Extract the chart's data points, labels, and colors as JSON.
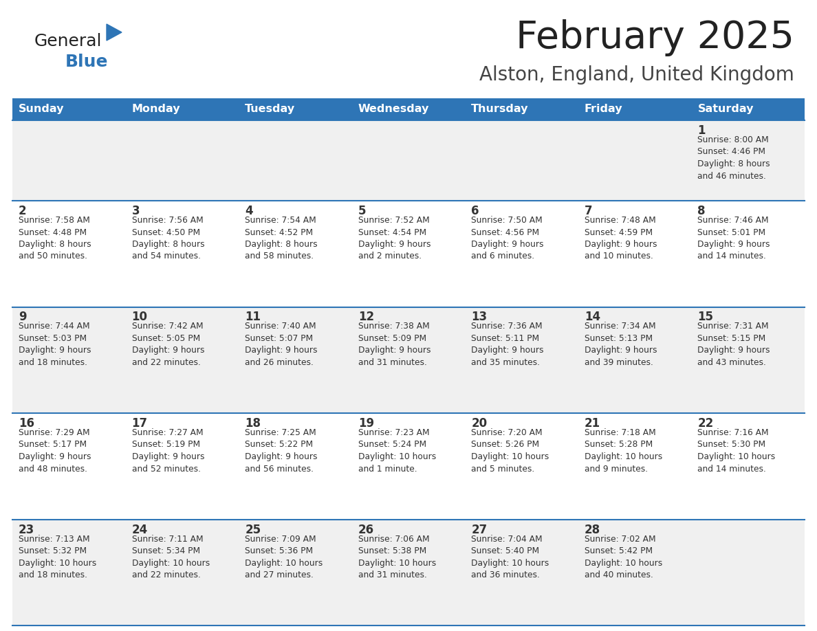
{
  "title": "February 2025",
  "subtitle": "Alston, England, United Kingdom",
  "header_bg": "#2E75B6",
  "header_text": "#FFFFFF",
  "row_bg_odd": "#F0F0F0",
  "row_bg_even": "#FFFFFF",
  "cell_border": "#2E75B6",
  "day_names": [
    "Sunday",
    "Monday",
    "Tuesday",
    "Wednesday",
    "Thursday",
    "Friday",
    "Saturday"
  ],
  "days": [
    {
      "day": 1,
      "col": 6,
      "row": 0,
      "sunrise": "8:00 AM",
      "sunset": "4:46 PM",
      "daylight": "8 hours and 46 minutes."
    },
    {
      "day": 2,
      "col": 0,
      "row": 1,
      "sunrise": "7:58 AM",
      "sunset": "4:48 PM",
      "daylight": "8 hours and 50 minutes."
    },
    {
      "day": 3,
      "col": 1,
      "row": 1,
      "sunrise": "7:56 AM",
      "sunset": "4:50 PM",
      "daylight": "8 hours and 54 minutes."
    },
    {
      "day": 4,
      "col": 2,
      "row": 1,
      "sunrise": "7:54 AM",
      "sunset": "4:52 PM",
      "daylight": "8 hours and 58 minutes."
    },
    {
      "day": 5,
      "col": 3,
      "row": 1,
      "sunrise": "7:52 AM",
      "sunset": "4:54 PM",
      "daylight": "9 hours and 2 minutes."
    },
    {
      "day": 6,
      "col": 4,
      "row": 1,
      "sunrise": "7:50 AM",
      "sunset": "4:56 PM",
      "daylight": "9 hours and 6 minutes."
    },
    {
      "day": 7,
      "col": 5,
      "row": 1,
      "sunrise": "7:48 AM",
      "sunset": "4:59 PM",
      "daylight": "9 hours and 10 minutes."
    },
    {
      "day": 8,
      "col": 6,
      "row": 1,
      "sunrise": "7:46 AM",
      "sunset": "5:01 PM",
      "daylight": "9 hours and 14 minutes."
    },
    {
      "day": 9,
      "col": 0,
      "row": 2,
      "sunrise": "7:44 AM",
      "sunset": "5:03 PM",
      "daylight": "9 hours and 18 minutes."
    },
    {
      "day": 10,
      "col": 1,
      "row": 2,
      "sunrise": "7:42 AM",
      "sunset": "5:05 PM",
      "daylight": "9 hours and 22 minutes."
    },
    {
      "day": 11,
      "col": 2,
      "row": 2,
      "sunrise": "7:40 AM",
      "sunset": "5:07 PM",
      "daylight": "9 hours and 26 minutes."
    },
    {
      "day": 12,
      "col": 3,
      "row": 2,
      "sunrise": "7:38 AM",
      "sunset": "5:09 PM",
      "daylight": "9 hours and 31 minutes."
    },
    {
      "day": 13,
      "col": 4,
      "row": 2,
      "sunrise": "7:36 AM",
      "sunset": "5:11 PM",
      "daylight": "9 hours and 35 minutes."
    },
    {
      "day": 14,
      "col": 5,
      "row": 2,
      "sunrise": "7:34 AM",
      "sunset": "5:13 PM",
      "daylight": "9 hours and 39 minutes."
    },
    {
      "day": 15,
      "col": 6,
      "row": 2,
      "sunrise": "7:31 AM",
      "sunset": "5:15 PM",
      "daylight": "9 hours and 43 minutes."
    },
    {
      "day": 16,
      "col": 0,
      "row": 3,
      "sunrise": "7:29 AM",
      "sunset": "5:17 PM",
      "daylight": "9 hours and 48 minutes."
    },
    {
      "day": 17,
      "col": 1,
      "row": 3,
      "sunrise": "7:27 AM",
      "sunset": "5:19 PM",
      "daylight": "9 hours and 52 minutes."
    },
    {
      "day": 18,
      "col": 2,
      "row": 3,
      "sunrise": "7:25 AM",
      "sunset": "5:22 PM",
      "daylight": "9 hours and 56 minutes."
    },
    {
      "day": 19,
      "col": 3,
      "row": 3,
      "sunrise": "7:23 AM",
      "sunset": "5:24 PM",
      "daylight": "10 hours and 1 minute."
    },
    {
      "day": 20,
      "col": 4,
      "row": 3,
      "sunrise": "7:20 AM",
      "sunset": "5:26 PM",
      "daylight": "10 hours and 5 minutes."
    },
    {
      "day": 21,
      "col": 5,
      "row": 3,
      "sunrise": "7:18 AM",
      "sunset": "5:28 PM",
      "daylight": "10 hours and 9 minutes."
    },
    {
      "day": 22,
      "col": 6,
      "row": 3,
      "sunrise": "7:16 AM",
      "sunset": "5:30 PM",
      "daylight": "10 hours and 14 minutes."
    },
    {
      "day": 23,
      "col": 0,
      "row": 4,
      "sunrise": "7:13 AM",
      "sunset": "5:32 PM",
      "daylight": "10 hours and 18 minutes."
    },
    {
      "day": 24,
      "col": 1,
      "row": 4,
      "sunrise": "7:11 AM",
      "sunset": "5:34 PM",
      "daylight": "10 hours and 22 minutes."
    },
    {
      "day": 25,
      "col": 2,
      "row": 4,
      "sunrise": "7:09 AM",
      "sunset": "5:36 PM",
      "daylight": "10 hours and 27 minutes."
    },
    {
      "day": 26,
      "col": 3,
      "row": 4,
      "sunrise": "7:06 AM",
      "sunset": "5:38 PM",
      "daylight": "10 hours and 31 minutes."
    },
    {
      "day": 27,
      "col": 4,
      "row": 4,
      "sunrise": "7:04 AM",
      "sunset": "5:40 PM",
      "daylight": "10 hours and 36 minutes."
    },
    {
      "day": 28,
      "col": 5,
      "row": 4,
      "sunrise": "7:02 AM",
      "sunset": "5:42 PM",
      "daylight": "10 hours and 40 minutes."
    }
  ],
  "logo_general_color": "#222222",
  "logo_blue_color": "#2E75B6",
  "logo_triangle_color": "#2E75B6",
  "title_color": "#222222",
  "subtitle_color": "#444444",
  "day_number_color": "#333333",
  "cell_text_color": "#333333"
}
